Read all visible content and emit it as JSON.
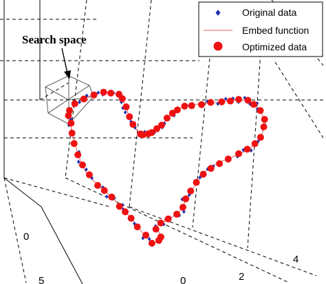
{
  "chart_data": {
    "type": "scatter",
    "title": "",
    "xlabel": "",
    "ylabel": "",
    "zlabel": "",
    "grid": true,
    "legend_position": "top-right",
    "annotations": [
      {
        "text": "Search space",
        "target": "search-space-box"
      }
    ],
    "tick_labels": [
      "0",
      "5",
      "0",
      "2",
      "4"
    ],
    "series": [
      {
        "name": "Original data",
        "marker": "diamond",
        "color": "#1f2fb0",
        "values": "Original data points along the closed heart-shaped 3-D curve"
      },
      {
        "name": "Embed function",
        "marker": "line",
        "color": "#e06060",
        "values": "Embedded smooth curve through the data"
      },
      {
        "name": "Optimized data",
        "marker": "circle",
        "color": "#ee1111",
        "values": "Optimized points lying on the embedded curve"
      }
    ]
  }
}
